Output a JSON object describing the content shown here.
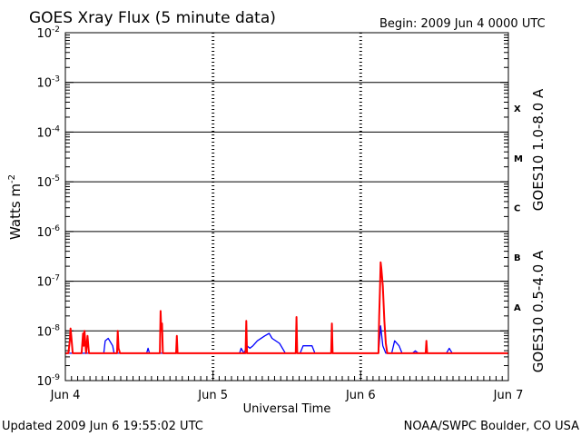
{
  "chart_data": {
    "type": "line",
    "title": "GOES Xray Flux (5 minute data)",
    "begin_label": "Begin:  2009 Jun 4 0000 UTC",
    "ylabel_main": "Watts m",
    "ylabel_sup": "-2",
    "xlabel": "Universal Time",
    "x_ticks": [
      "Jun 4",
      "Jun 5",
      "Jun 6",
      "Jun 7"
    ],
    "x_range_days": [
      0,
      3
    ],
    "y_scale": "log",
    "y_ticks": [
      {
        "base": "10",
        "exp": "-9"
      },
      {
        "base": "10",
        "exp": "-8"
      },
      {
        "base": "10",
        "exp": "-7"
      },
      {
        "base": "10",
        "exp": "-6"
      },
      {
        "base": "10",
        "exp": "-5"
      },
      {
        "base": "10",
        "exp": "-4"
      },
      {
        "base": "10",
        "exp": "-3"
      },
      {
        "base": "10",
        "exp": "-2"
      }
    ],
    "ylim_exp": [
      -9,
      -2
    ],
    "flare_classes": [
      "A",
      "B",
      "C",
      "M",
      "X"
    ],
    "series": [
      {
        "name": "GOES10 1.0-8.0 A",
        "color": "#ff0000",
        "points": [
          [
            0.0,
            -8.45
          ],
          [
            0.02,
            -8.45
          ],
          [
            0.03,
            -8.2
          ],
          [
            0.035,
            -7.95
          ],
          [
            0.04,
            -8.1
          ],
          [
            0.05,
            -8.45
          ],
          [
            0.11,
            -8.45
          ],
          [
            0.12,
            -8.05
          ],
          [
            0.125,
            -8.3
          ],
          [
            0.13,
            -8.0
          ],
          [
            0.14,
            -8.45
          ],
          [
            0.15,
            -8.1
          ],
          [
            0.16,
            -8.45
          ],
          [
            0.35,
            -8.45
          ],
          [
            0.355,
            -8.0
          ],
          [
            0.36,
            -8.35
          ],
          [
            0.37,
            -8.45
          ],
          [
            0.64,
            -8.45
          ],
          [
            0.645,
            -7.6
          ],
          [
            0.65,
            -8.0
          ],
          [
            0.655,
            -7.85
          ],
          [
            0.66,
            -8.45
          ],
          [
            0.75,
            -8.45
          ],
          [
            0.755,
            -8.1
          ],
          [
            0.76,
            -8.45
          ],
          [
            1.22,
            -8.45
          ],
          [
            1.225,
            -7.8
          ],
          [
            1.23,
            -8.45
          ],
          [
            1.56,
            -8.45
          ],
          [
            1.565,
            -7.72
          ],
          [
            1.57,
            -8.45
          ],
          [
            1.8,
            -8.45
          ],
          [
            1.805,
            -7.85
          ],
          [
            1.81,
            -8.45
          ],
          [
            2.12,
            -8.45
          ],
          [
            2.125,
            -7.7
          ],
          [
            2.13,
            -7.2
          ],
          [
            2.135,
            -6.62
          ],
          [
            2.14,
            -6.75
          ],
          [
            2.15,
            -7.1
          ],
          [
            2.16,
            -7.8
          ],
          [
            2.17,
            -8.25
          ],
          [
            2.18,
            -8.45
          ],
          [
            2.44,
            -8.45
          ],
          [
            2.445,
            -8.2
          ],
          [
            2.45,
            -8.45
          ],
          [
            3.0,
            -8.45
          ]
        ]
      },
      {
        "name": "GOES10 0.5-4.0 A",
        "color": "#0000ff",
        "points": [
          [
            0.0,
            -8.45
          ],
          [
            0.26,
            -8.45
          ],
          [
            0.27,
            -8.2
          ],
          [
            0.29,
            -8.15
          ],
          [
            0.32,
            -8.3
          ],
          [
            0.33,
            -8.45
          ],
          [
            0.55,
            -8.45
          ],
          [
            0.56,
            -8.35
          ],
          [
            0.57,
            -8.45
          ],
          [
            1.18,
            -8.45
          ],
          [
            1.19,
            -8.35
          ],
          [
            1.21,
            -8.45
          ],
          [
            1.23,
            -8.3
          ],
          [
            1.25,
            -8.35
          ],
          [
            1.27,
            -8.3
          ],
          [
            1.3,
            -8.2
          ],
          [
            1.35,
            -8.1
          ],
          [
            1.38,
            -8.05
          ],
          [
            1.4,
            -8.15
          ],
          [
            1.45,
            -8.25
          ],
          [
            1.49,
            -8.45
          ],
          [
            1.59,
            -8.45
          ],
          [
            1.61,
            -8.3
          ],
          [
            1.67,
            -8.3
          ],
          [
            1.69,
            -8.45
          ],
          [
            2.12,
            -8.45
          ],
          [
            2.135,
            -7.9
          ],
          [
            2.15,
            -8.3
          ],
          [
            2.17,
            -8.45
          ],
          [
            2.21,
            -8.45
          ],
          [
            2.23,
            -8.2
          ],
          [
            2.26,
            -8.3
          ],
          [
            2.28,
            -8.45
          ],
          [
            2.35,
            -8.45
          ],
          [
            2.37,
            -8.4
          ],
          [
            2.39,
            -8.45
          ],
          [
            2.58,
            -8.45
          ],
          [
            2.6,
            -8.35
          ],
          [
            2.62,
            -8.45
          ],
          [
            3.0,
            -8.45
          ]
        ]
      }
    ],
    "footer_left": "Updated 2009 Jun  6 19:55:02 UTC",
    "footer_right": "NOAA/SWPC Boulder, CO USA"
  }
}
